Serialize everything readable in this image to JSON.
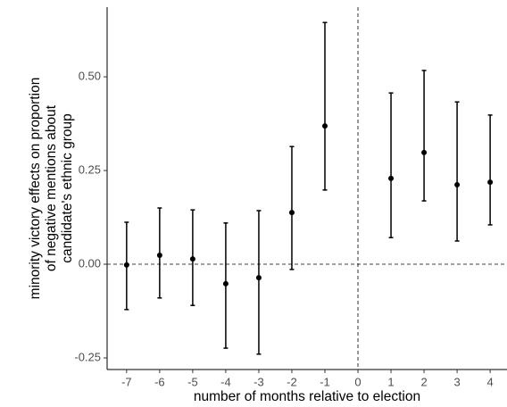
{
  "chart_data": {
    "type": "errorbar",
    "xlabel": "number of months relative to election",
    "ylabel": [
      "minority victory effects on proportion",
      "of negative mentions about",
      "candidate's ethnic group"
    ],
    "x": [
      -7,
      -6,
      -5,
      -4,
      -3,
      -2,
      -1,
      1,
      2,
      3,
      4
    ],
    "values": [
      -0.002,
      0.024,
      0.014,
      -0.052,
      -0.036,
      0.138,
      0.369,
      0.229,
      0.298,
      0.212,
      0.219
    ],
    "lower": [
      -0.121,
      -0.09,
      -0.11,
      -0.224,
      -0.24,
      -0.014,
      0.198,
      0.071,
      0.169,
      0.062,
      0.105
    ],
    "upper": [
      0.112,
      0.15,
      0.145,
      0.11,
      0.143,
      0.314,
      0.645,
      0.457,
      0.517,
      0.433,
      0.398
    ],
    "color": "#000000",
    "xlim": [
      -7.59,
      4.51
    ],
    "ylim": [
      -0.281,
      0.686
    ],
    "xticks": [
      -7,
      -6,
      -5,
      -4,
      -3,
      -2,
      -1,
      0,
      1,
      2,
      3,
      4
    ],
    "yticks": [
      {
        "value": -0.25,
        "label": "-0.25"
      },
      {
        "value": 0,
        "label": "0.00"
      },
      {
        "value": 0.25,
        "label": "0.25"
      },
      {
        "value": 0.5,
        "label": "0.50"
      }
    ],
    "hline": 0,
    "vline": 0
  }
}
